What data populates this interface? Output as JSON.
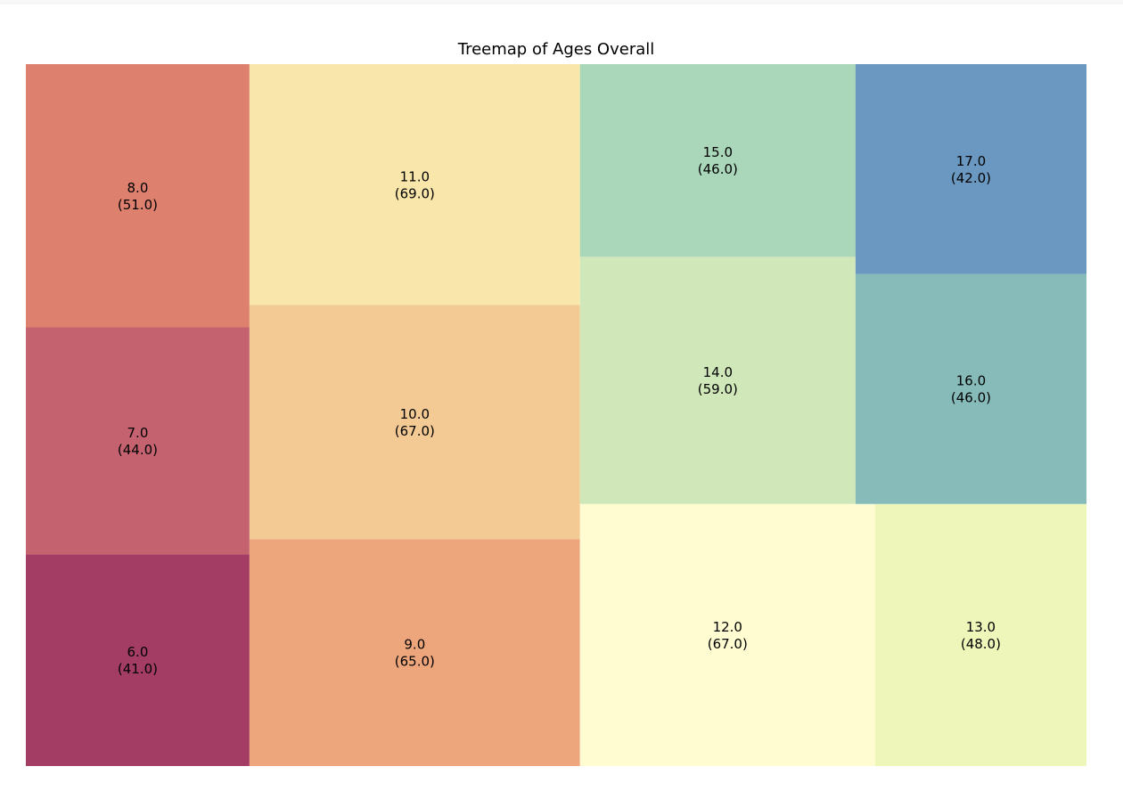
{
  "chart_data": {
    "type": "treemap",
    "title": "Treemap of Ages Overall",
    "items": [
      {
        "label": "6.0",
        "value": 41.0,
        "value_text": "(41.0)",
        "color": "#a33d63"
      },
      {
        "label": "7.0",
        "value": 44.0,
        "value_text": "(44.0)",
        "color": "#c4636f"
      },
      {
        "label": "8.0",
        "value": 51.0,
        "value_text": "(51.0)",
        "color": "#dd806e"
      },
      {
        "label": "9.0",
        "value": 65.0,
        "value_text": "(65.0)",
        "color": "#eda67c"
      },
      {
        "label": "10.0",
        "value": 67.0,
        "value_text": "(67.0)",
        "color": "#f3ca94"
      },
      {
        "label": "11.0",
        "value": 69.0,
        "value_text": "(69.0)",
        "color": "#f9e6aa"
      },
      {
        "label": "12.0",
        "value": 67.0,
        "value_text": "(67.0)",
        "color": "#fefcd0"
      },
      {
        "label": "13.0",
        "value": 48.0,
        "value_text": "(48.0)",
        "color": "#eff6b9"
      },
      {
        "label": "14.0",
        "value": 59.0,
        "value_text": "(59.0)",
        "color": "#d0e8b9"
      },
      {
        "label": "15.0",
        "value": 46.0,
        "value_text": "(46.0)",
        "color": "#aad6b9"
      },
      {
        "label": "16.0",
        "value": 46.0,
        "value_text": "(46.0)",
        "color": "#86bbba"
      },
      {
        "label": "17.0",
        "value": 42.0,
        "value_text": "(42.0)",
        "color": "#6b98c1"
      }
    ]
  }
}
